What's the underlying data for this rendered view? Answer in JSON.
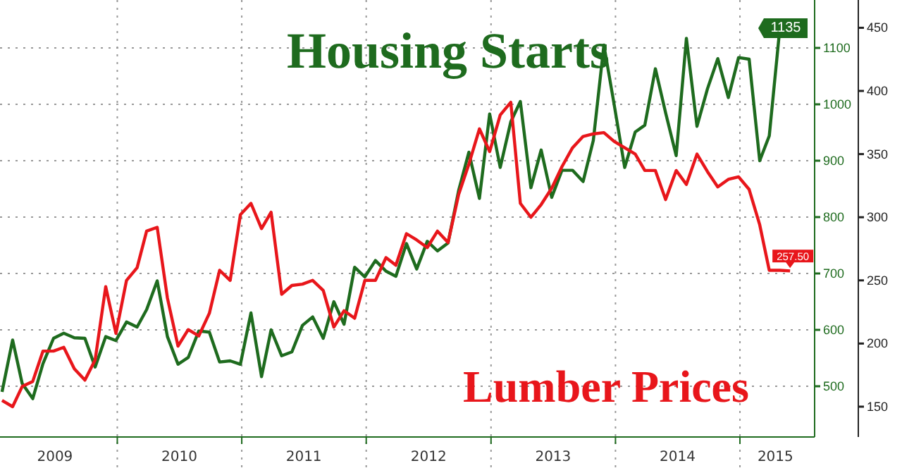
{
  "chart_data": {
    "type": "line",
    "legend": false,
    "grid": true,
    "x": [
      "2009-01-28",
      "2009-02-28",
      "2009-03-28",
      "2009-04-28",
      "2009-05-28",
      "2009-06-28",
      "2009-07-28",
      "2009-08-28",
      "2009-09-28",
      "2009-10-28",
      "2009-11-28",
      "2009-12-28",
      "2010-01-28",
      "2010-02-28",
      "2010-03-28",
      "2010-04-28",
      "2010-05-28",
      "2010-06-28",
      "2010-07-28",
      "2010-08-28",
      "2010-09-28",
      "2010-10-28",
      "2010-11-28",
      "2010-12-28",
      "2011-01-28",
      "2011-02-28",
      "2011-03-28",
      "2011-04-28",
      "2011-05-28",
      "2011-06-28",
      "2011-07-28",
      "2011-08-28",
      "2011-09-28",
      "2011-10-28",
      "2011-11-28",
      "2011-12-28",
      "2012-01-28",
      "2012-02-28",
      "2012-03-28",
      "2012-04-28",
      "2012-05-28",
      "2012-06-28",
      "2012-07-28",
      "2012-08-28",
      "2012-09-28",
      "2012-10-28",
      "2012-11-28",
      "2012-12-28",
      "2013-01-28",
      "2013-02-28",
      "2013-03-28",
      "2013-04-28",
      "2013-05-28",
      "2013-06-28",
      "2013-07-28",
      "2013-08-28",
      "2013-09-28",
      "2013-10-28",
      "2013-11-28",
      "2013-12-28",
      "2014-01-28",
      "2014-02-28",
      "2014-03-28",
      "2014-04-28",
      "2014-05-28",
      "2014-06-28",
      "2014-07-28",
      "2014-08-28",
      "2014-09-28",
      "2014-10-28",
      "2014-11-28",
      "2014-12-28",
      "2015-01-28",
      "2015-02-28",
      "2015-03-28",
      "2015-04-28",
      "2015-05-28"
    ],
    "xlim": [
      "2009-01-22",
      "2015-08-08"
    ],
    "xticks": [
      {
        "value": "2010-01-01",
        "label": null
      },
      {
        "value": "2011-01-01",
        "label": null
      },
      {
        "value": "2012-01-01",
        "label": null
      },
      {
        "value": "2013-01-01",
        "label": null
      },
      {
        "value": "2014-01-01",
        "label": null
      },
      {
        "value": "2015-01-01",
        "label": null
      },
      {
        "value": "2009-07-02",
        "label": "2009"
      },
      {
        "value": "2010-07-02",
        "label": "2010"
      },
      {
        "value": "2011-07-02",
        "label": "2011"
      },
      {
        "value": "2012-07-02",
        "label": "2012"
      },
      {
        "value": "2013-07-02",
        "label": "2013"
      },
      {
        "value": "2014-07-02",
        "label": "2014"
      },
      {
        "value": "2015-04-15",
        "label": "2015"
      }
    ],
    "ylim": [
      410,
      1185
    ],
    "yticks": [
      500,
      600,
      700,
      800,
      900,
      1000,
      1100
    ],
    "y2lim": [
      126,
      472
    ],
    "y2ticks": [
      150,
      200,
      250,
      300,
      350,
      400,
      450
    ],
    "series": [
      {
        "name": "Housing Starts",
        "color": "#1e6b1e",
        "values": [
          490,
          582,
          505,
          478,
          540,
          585,
          594,
          586,
          585,
          534,
          588,
          581,
          614,
          605,
          636,
          687,
          588,
          539,
          551,
          598,
          596,
          543,
          545,
          539,
          630,
          517,
          600,
          554,
          561,
          608,
          623,
          585,
          650,
          610,
          711,
          694,
          723,
          704,
          695,
          753,
          708,
          757,
          740,
          754,
          847,
          915,
          833,
          983,
          888,
          969,
          1005,
          852,
          919,
          835,
          883,
          883,
          863,
          936,
          1105,
          1000,
          888,
          951,
          963,
          1063,
          985,
          909,
          1117,
          961,
          1028,
          1081,
          1012,
          1083,
          1080,
          900,
          944,
          1135,
          null
        ],
        "value_labels": [
          null,
          null,
          null,
          null,
          null,
          null,
          null,
          null,
          null,
          null,
          null,
          null,
          null,
          null,
          null,
          null,
          null,
          null,
          null,
          null,
          null,
          null,
          null,
          null,
          null,
          null,
          null,
          null,
          null,
          null,
          null,
          null,
          null,
          null,
          null,
          null,
          null,
          null,
          null,
          null,
          null,
          null,
          null,
          null,
          null,
          null,
          null,
          null,
          null,
          null,
          null,
          null,
          null,
          null,
          null,
          null,
          null,
          null,
          null,
          null,
          null,
          null,
          null,
          null,
          null,
          null,
          null,
          null,
          null,
          null,
          null,
          null,
          null,
          null,
          null,
          "1135",
          null
        ]
      },
      {
        "name": "Lumber Prices",
        "color": "#e8161b",
        "axis": "y2",
        "values": [
          155,
          150,
          166,
          170,
          194,
          194,
          197,
          180,
          171,
          187,
          245,
          208,
          250,
          260,
          289,
          292,
          236,
          198,
          211,
          206,
          224,
          258,
          250,
          302,
          311,
          291,
          304,
          239,
          246,
          247,
          250,
          242,
          213,
          226,
          220,
          250,
          250,
          268,
          262,
          287,
          282,
          276,
          289,
          280,
          318,
          342,
          370,
          352,
          381,
          391,
          311,
          300,
          310,
          323,
          340,
          355,
          364,
          366,
          367,
          360,
          355,
          350,
          337,
          337,
          314,
          337,
          326,
          350,
          336,
          324,
          330,
          332,
          322,
          294,
          258,
          258,
          257.5
        ],
        "value_labels": [
          null,
          null,
          null,
          null,
          null,
          null,
          null,
          null,
          null,
          null,
          null,
          null,
          null,
          null,
          null,
          null,
          null,
          null,
          null,
          null,
          null,
          null,
          null,
          null,
          null,
          null,
          null,
          null,
          null,
          null,
          null,
          null,
          null,
          null,
          null,
          null,
          null,
          null,
          null,
          null,
          null,
          null,
          null,
          null,
          null,
          null,
          null,
          null,
          null,
          null,
          null,
          null,
          null,
          null,
          null,
          null,
          null,
          null,
          null,
          null,
          null,
          null,
          null,
          null,
          null,
          null,
          null,
          null,
          null,
          null,
          null,
          null,
          null,
          null,
          null,
          null,
          "257.50"
        ]
      }
    ]
  }
}
